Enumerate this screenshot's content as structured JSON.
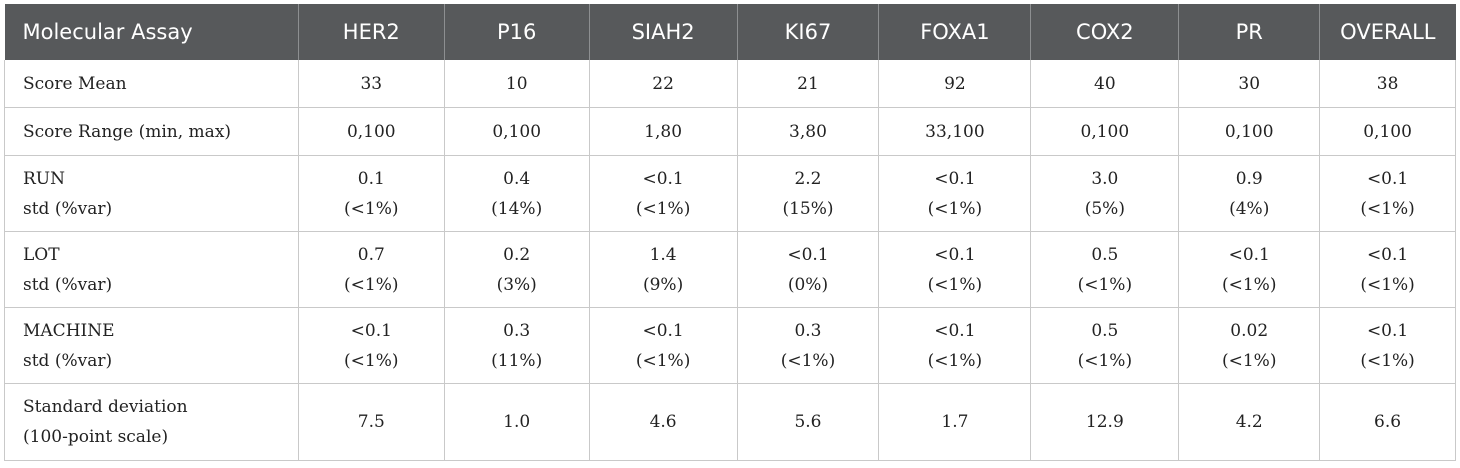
{
  "table": {
    "headers": [
      "Molecular Assay",
      "HER2",
      "P16",
      "SIAH2",
      "KI67",
      "FOXA1",
      "COX2",
      "PR",
      "OVERALL"
    ],
    "rows": [
      {
        "label": [
          "Score Mean"
        ],
        "cells": [
          [
            "33"
          ],
          [
            "10"
          ],
          [
            "22"
          ],
          [
            "21"
          ],
          [
            "92"
          ],
          [
            "40"
          ],
          [
            "30"
          ],
          [
            "38"
          ]
        ]
      },
      {
        "label": [
          "Score Range (min, max)"
        ],
        "cells": [
          [
            "0,100"
          ],
          [
            "0,100"
          ],
          [
            "1,80"
          ],
          [
            "3,80"
          ],
          [
            "33,100"
          ],
          [
            "0,100"
          ],
          [
            "0,100"
          ],
          [
            "0,100"
          ]
        ]
      },
      {
        "label": [
          "RUN",
          "std (%var)"
        ],
        "cells": [
          [
            "0.1",
            "(<1%)"
          ],
          [
            "0.4",
            "(14%)"
          ],
          [
            "<0.1",
            "(<1%)"
          ],
          [
            "2.2",
            "(15%)"
          ],
          [
            "<0.1",
            "(<1%)"
          ],
          [
            "3.0",
            "(5%)"
          ],
          [
            "0.9",
            "(4%)"
          ],
          [
            "<0.1",
            "(<1%)"
          ]
        ]
      },
      {
        "label": [
          "LOT",
          "std (%var)"
        ],
        "cells": [
          [
            "0.7",
            "(<1%)"
          ],
          [
            "0.2",
            "(3%)"
          ],
          [
            "1.4",
            "(9%)"
          ],
          [
            "<0.1",
            "(0%)"
          ],
          [
            "<0.1",
            "(<1%)"
          ],
          [
            "0.5",
            "(<1%)"
          ],
          [
            "<0.1",
            "(<1%)"
          ],
          [
            "<0.1",
            "(<1%)"
          ]
        ]
      },
      {
        "label": [
          "MACHINE",
          "std (%var)"
        ],
        "cells": [
          [
            "<0.1",
            "(<1%)"
          ],
          [
            "0.3",
            "(11%)"
          ],
          [
            "<0.1",
            "(<1%)"
          ],
          [
            "0.3",
            "(<1%)"
          ],
          [
            "<0.1",
            "(<1%)"
          ],
          [
            "0.5",
            "(<1%)"
          ],
          [
            "0.02",
            "(<1%)"
          ],
          [
            "<0.1",
            "(<1%)"
          ]
        ]
      },
      {
        "label": [
          "Standard deviation",
          "(100-point scale)"
        ],
        "cells": [
          [
            "7.5"
          ],
          [
            "1.0"
          ],
          [
            "4.6"
          ],
          [
            "5.6"
          ],
          [
            "1.7"
          ],
          [
            "12.9"
          ],
          [
            "4.2"
          ],
          [
            "6.6"
          ]
        ]
      }
    ]
  }
}
